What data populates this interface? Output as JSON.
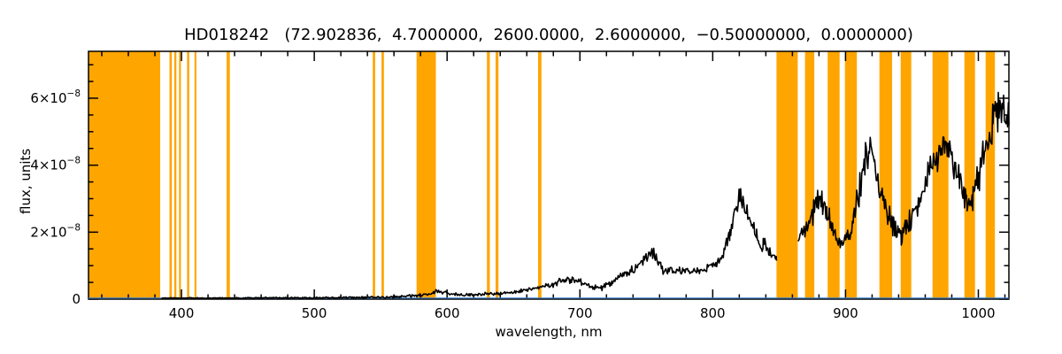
{
  "chart_data": {
    "type": "line",
    "title": "HD018242   (72.902836,  4.7000000,  2600.0000,  2.6000000,  −0.50000000,  0.0000000)",
    "xlabel": "wavelength, nm",
    "ylabel": "flux, units",
    "xlim": [
      330,
      1023
    ],
    "ylim_e8": [
      0,
      7.4
    ],
    "flux_unit_scale": "1e-8",
    "grid": false,
    "legend": "none",
    "band_color": "#FFA500",
    "x_minor_step": 20,
    "y_minor_step": 0.5,
    "x_ticks": [
      {
        "v": 400,
        "label": "400"
      },
      {
        "v": 500,
        "label": "500"
      },
      {
        "v": 600,
        "label": "600"
      },
      {
        "v": 700,
        "label": "700"
      },
      {
        "v": 800,
        "label": "800"
      },
      {
        "v": 900,
        "label": "900"
      },
      {
        "v": 1000,
        "label": "1000"
      }
    ],
    "y_ticks": [
      {
        "v": 0,
        "base": "0",
        "sup": ""
      },
      {
        "v": 2,
        "base": "2×10",
        "sup": "−8"
      },
      {
        "v": 4,
        "base": "4×10",
        "sup": "−8"
      },
      {
        "v": 6,
        "base": "6×10",
        "sup": "−8"
      }
    ],
    "masked_bands_nm": [
      [
        330,
        384
      ],
      [
        391,
        392.8
      ],
      [
        394.6,
        396.2
      ],
      [
        398.2,
        399.6
      ],
      [
        404.2,
        405.8
      ],
      [
        409.8,
        411.2
      ],
      [
        434,
        436.4
      ],
      [
        544,
        545.8
      ],
      [
        550.6,
        552.4
      ],
      [
        577,
        591.5
      ],
      [
        630,
        632.2
      ],
      [
        636.5,
        638.6
      ],
      [
        668.5,
        671
      ],
      [
        848,
        864
      ],
      [
        869.5,
        876.5
      ],
      [
        886.5,
        895.5
      ],
      [
        899.5,
        908.5
      ],
      [
        925.5,
        935
      ],
      [
        941.5,
        949.5
      ],
      [
        965.5,
        977.5
      ],
      [
        989.5,
        997.5
      ],
      [
        1005.5,
        1012.5
      ]
    ],
    "series": [
      {
        "name": "spectrum",
        "color": "#000000",
        "points_format": [
          "wavelength_nm",
          "flux_e8",
          "noise_amp_e8"
        ],
        "segments": [
          [
            [
              385,
              0.03,
              0.02
            ],
            [
              420,
              0.03,
              0.02
            ],
            [
              460,
              0.04,
              0.02
            ],
            [
              500,
              0.04,
              0.03
            ],
            [
              530,
              0.05,
              0.03
            ],
            [
              555,
              0.06,
              0.04
            ],
            [
              570,
              0.09,
              0.05
            ],
            [
              585,
              0.14,
              0.06
            ],
            [
              593,
              0.24,
              0.08
            ],
            [
              600,
              0.18,
              0.06
            ],
            [
              610,
              0.13,
              0.05
            ],
            [
              622,
              0.14,
              0.05
            ],
            [
              635,
              0.17,
              0.06
            ],
            [
              648,
              0.2,
              0.07
            ],
            [
              660,
              0.26,
              0.08
            ],
            [
              672,
              0.34,
              0.1
            ],
            [
              682,
              0.48,
              0.12
            ],
            [
              690,
              0.58,
              0.14
            ],
            [
              700,
              0.52,
              0.12
            ],
            [
              708,
              0.38,
              0.1
            ],
            [
              716,
              0.33,
              0.1
            ],
            [
              724,
              0.5,
              0.13
            ],
            [
              733,
              0.75,
              0.16
            ],
            [
              742,
              0.95,
              0.18
            ],
            [
              750,
              1.2,
              0.22
            ],
            [
              755,
              1.38,
              0.25
            ],
            [
              759,
              1.15,
              0.28
            ],
            [
              763,
              0.78,
              0.18
            ],
            [
              768,
              0.88,
              0.14
            ],
            [
              775,
              0.85,
              0.12
            ],
            [
              783,
              0.8,
              0.12
            ],
            [
              790,
              0.86,
              0.13
            ],
            [
              797,
              0.95,
              0.14
            ],
            [
              803,
              1.1,
              0.16
            ],
            [
              808,
              1.4,
              0.22
            ],
            [
              813,
              2.0,
              0.35
            ],
            [
              818,
              2.85,
              0.45
            ],
            [
              821,
              3.05,
              0.4
            ],
            [
              824,
              2.75,
              0.45
            ],
            [
              828,
              2.2,
              0.4
            ],
            [
              833,
              1.85,
              0.35
            ],
            [
              838,
              1.65,
              0.3
            ],
            [
              843,
              1.45,
              0.28
            ],
            [
              848,
              1.15,
              0.22
            ]
          ],
          [
            [
              864,
              1.85,
              0.3
            ],
            [
              870,
              2.1,
              0.35
            ],
            [
              876,
              2.6,
              0.45
            ],
            [
              881,
              2.95,
              0.5
            ],
            [
              886,
              2.55,
              0.45
            ],
            [
              891,
              2.05,
              0.4
            ],
            [
              896,
              1.7,
              0.35
            ],
            [
              901,
              1.85,
              0.38
            ],
            [
              906,
              2.4,
              0.45
            ],
            [
              911,
              3.4,
              0.55
            ],
            [
              915,
              4.3,
              0.55
            ],
            [
              918,
              4.45,
              0.55
            ],
            [
              922,
              3.9,
              0.5
            ],
            [
              927,
              3.1,
              0.5
            ],
            [
              932,
              2.45,
              0.45
            ],
            [
              937,
              2.1,
              0.4
            ],
            [
              942,
              1.9,
              0.4
            ],
            [
              947,
              2.15,
              0.42
            ],
            [
              953,
              2.7,
              0.48
            ],
            [
              959,
              3.3,
              0.5
            ],
            [
              965,
              3.9,
              0.55
            ],
            [
              971,
              4.4,
              0.55
            ],
            [
              976,
              4.65,
              0.55
            ],
            [
              981,
              4.15,
              0.55
            ],
            [
              986,
              3.45,
              0.5
            ],
            [
              991,
              3.05,
              0.5
            ],
            [
              996,
              3.1,
              0.52
            ],
            [
              1001,
              3.7,
              0.58
            ],
            [
              1006,
              4.6,
              0.65
            ],
            [
              1011,
              5.3,
              0.7
            ],
            [
              1015,
              5.7,
              0.75
            ],
            [
              1019,
              5.6,
              0.85
            ],
            [
              1023,
              5.2,
              0.85
            ]
          ]
        ]
      },
      {
        "name": "zero-baseline",
        "color": "#3A7CC4",
        "value_e8": 0.03
      }
    ]
  }
}
